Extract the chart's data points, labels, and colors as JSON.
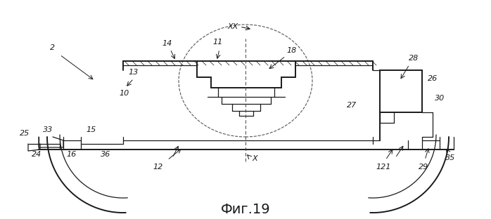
{
  "title": "Фиг.19",
  "title_fontsize": 14,
  "bg_color": "#ffffff",
  "line_color": "#1a1a1a",
  "fig_width": 6.98,
  "fig_height": 3.12,
  "dpi": 100
}
